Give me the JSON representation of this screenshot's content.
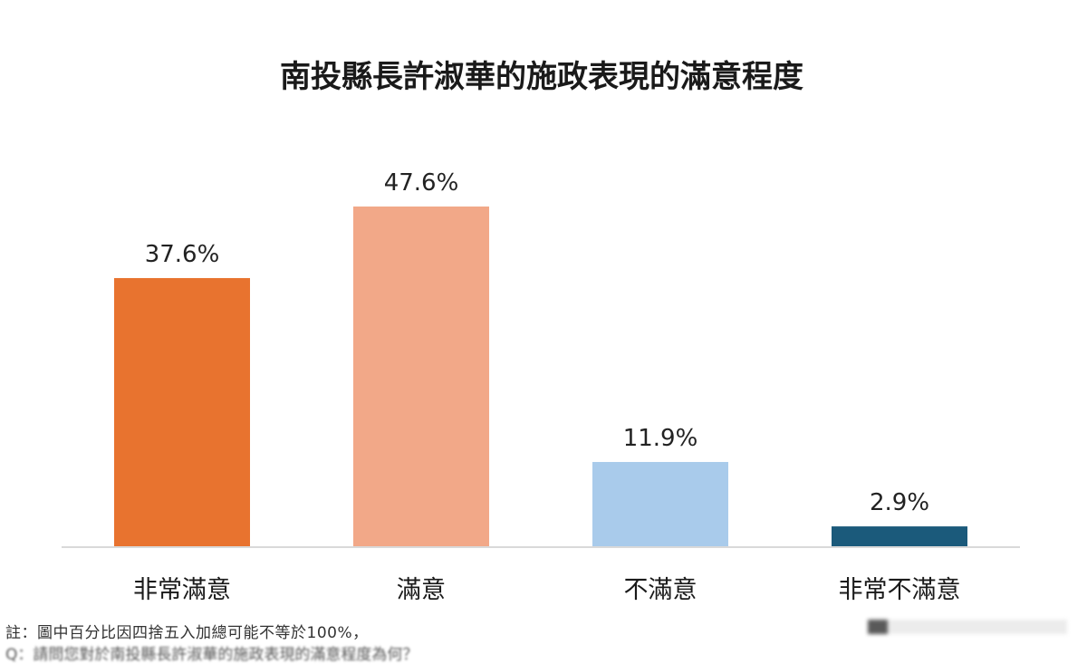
{
  "chart_data": {
    "type": "bar",
    "title": "南投縣長許淑華的施政表現的滿意程度",
    "categories": [
      "非常滿意",
      "滿意",
      "不滿意",
      "非常不滿意"
    ],
    "values": [
      37.6,
      47.6,
      11.9,
      2.9
    ],
    "value_labels": [
      "37.6%",
      "47.6%",
      "11.9%",
      "2.9%"
    ],
    "colors": [
      "#e8732f",
      "#f2a888",
      "#a9cbeb",
      "#1b5a7b"
    ],
    "ylim": [
      0,
      60
    ],
    "grid": false,
    "xlabel": "",
    "ylabel": ""
  },
  "footnote": "註：圖中百分比因四捨五入加總可能不等於100%，",
  "footnote_2": "Q：請問您對於南投縣長許淑華的施政表現的滿意程度為何？"
}
